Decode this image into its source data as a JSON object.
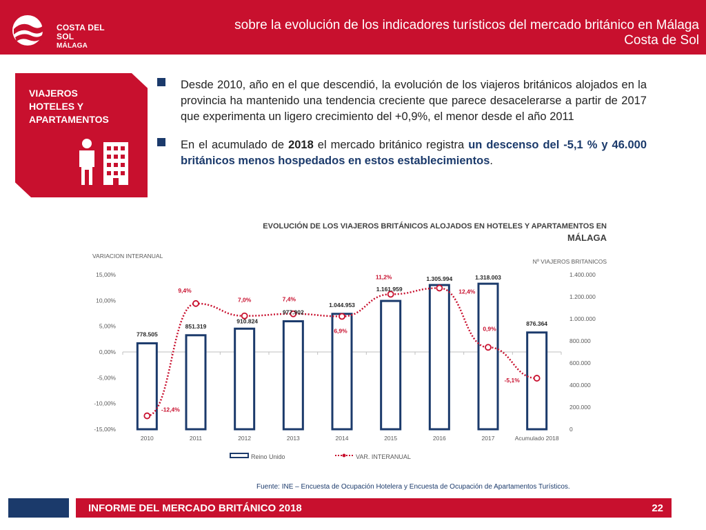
{
  "header": {
    "logo_line1": "COSTA DEL SOL",
    "logo_line2": "MÁLAGA",
    "title": "sobre la evolución de los indicadores turísticos del mercado británico en Málaga Costa de Sol"
  },
  "section": {
    "title_line1": "VIAJEROS",
    "title_line2": "HOTELES Y",
    "title_line3": "APARTAMENTOS",
    "icon": "person-building-icon"
  },
  "bullets": {
    "b1": "Desde 2010, año en el que descendió, la evolución de los viajeros británicos alojados en la provincia ha mantenido una tendencia creciente que parece desacelerarse a partir de 2017 que experimenta un ligero crecimiento del +0,9%, el menor desde el año 2011",
    "b2_part1": "En el acumulado de ",
    "b2_year": "2018",
    "b2_part2": " el mercado británico registra ",
    "b2_highlight": "un descenso del -5,1 % y 46.000 británicos menos hospedados en estos establecimientos",
    "b2_end": "."
  },
  "chart_data": {
    "type": "bar",
    "title_line1": "EVOLUCIÓN DE LOS VIAJEROS BRITÁNICOS ALOJADOS EN HOTELES Y APARTAMENTOS EN",
    "title_line2": "MÁLAGA",
    "ylabel_left": "VARIACION INTERANUAL",
    "ylabel_right": "Nº VIAJEROS BRITANICOS",
    "categories": [
      "2010",
      "2011",
      "2012",
      "2013",
      "2014",
      "2015",
      "2016",
      "2017",
      "Acumulado 2018"
    ],
    "left_axis": {
      "min": -15,
      "max": 15,
      "ticks": [
        15,
        10,
        5,
        0,
        -5,
        -10,
        -15
      ],
      "tick_labels": [
        "15,00%",
        "10,00%",
        "5,00%",
        "0,00%",
        "-5,00%",
        "-10,00%",
        "-15,00%"
      ]
    },
    "right_axis": {
      "min": 0,
      "max": 1400000,
      "ticks": [
        1400000,
        1200000,
        1000000,
        800000,
        600000,
        400000,
        200000,
        0
      ],
      "tick_labels": [
        "1.400.000",
        "1.200.000",
        "1.000.000",
        "800.000",
        "600.000",
        "400.000",
        "200.000",
        "0"
      ]
    },
    "series": [
      {
        "name": "Reino Unido",
        "type": "bar",
        "axis": "right",
        "color": "#1b3a6b",
        "values": [
          778505,
          851319,
          910824,
          977902,
          1044953,
          1161959,
          1305994,
          1318003,
          876364
        ],
        "labels": [
          "778.505",
          "851.319",
          "910.824",
          "977.902",
          "1.044.953",
          "1.161.959",
          "1.305.994",
          "1.318.003",
          "876.364"
        ]
      },
      {
        "name": "VAR. INTERANUAL",
        "type": "line",
        "axis": "left",
        "color": "#c8102e",
        "values": [
          -12.4,
          9.4,
          7.0,
          7.4,
          6.9,
          11.2,
          12.4,
          0.9,
          -5.1
        ],
        "labels": [
          "-12,4%",
          "9,4%",
          "7,0%",
          "7,4%",
          "6,9%",
          "11,2%",
          "12,4%",
          "0,9%",
          "-5,1%"
        ]
      }
    ],
    "legend_position": "bottom"
  },
  "source": "Fuente: INE – Encuesta de Ocupación Hotelera y Encuesta de Ocupación de Apartamentos Turísticos.",
  "footer": {
    "title": "INFORME DEL MERCADO BRITÁNICO 2018",
    "page": "22"
  },
  "colors": {
    "brand_red": "#c8102e",
    "navy": "#1b3a6b"
  }
}
